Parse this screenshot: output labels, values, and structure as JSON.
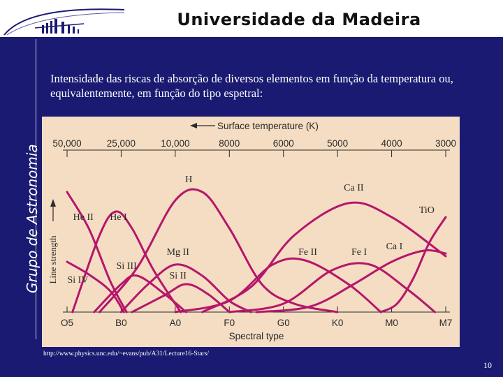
{
  "header": {
    "title": "Universidade da Madeira",
    "side_label": "Grupo de Astronomia"
  },
  "intro_text": "Intensidade das riscas de absorção de diversos elementos em função da temperatura ou, equivalentemente, em função do tipo espetral:",
  "source_url": "http://www.physics.unc.edu/~evans/pub/A31/Lecture16-Stars/",
  "page_number": "10",
  "colors": {
    "background": "#1a1a72",
    "chart_bg": "#f4ddc2",
    "curve": "#b5166b",
    "text_dark": "#2a2a2a"
  },
  "chart_data": {
    "type": "line",
    "title": "",
    "top_axis_label": "Surface temperature (K)",
    "top_ticks": [
      "50,000",
      "25,000",
      "10,000",
      "8000",
      "6000",
      "5000",
      "4000",
      "3000"
    ],
    "xlabel": "Spectral type",
    "x_ticks": [
      "O5",
      "B0",
      "A0",
      "F0",
      "G0",
      "K0",
      "M0",
      "M7"
    ],
    "ylabel": "Line strength",
    "xlim": [
      0,
      7
    ],
    "ylim": [
      0,
      1
    ],
    "series": [
      {
        "name": "He II",
        "x": [
          0,
          0.4,
          0.8,
          1.1
        ],
        "values": [
          0.86,
          0.6,
          0.22,
          0.0
        ]
      },
      {
        "name": "He I",
        "x": [
          0.1,
          0.6,
          0.9,
          1.2,
          1.6,
          2.1
        ],
        "values": [
          0.0,
          0.55,
          0.72,
          0.6,
          0.3,
          0.0
        ]
      },
      {
        "name": "Si IV",
        "x": [
          0,
          0.4,
          0.8,
          1.05
        ],
        "values": [
          0.36,
          0.27,
          0.15,
          0.0
        ]
      },
      {
        "name": "Si III",
        "x": [
          0.5,
          1.0,
          1.3,
          1.8,
          2.2
        ],
        "values": [
          0.0,
          0.2,
          0.26,
          0.13,
          0.0
        ]
      },
      {
        "name": "Si II",
        "x": [
          1.2,
          1.8,
          2.2,
          2.6,
          3.0
        ],
        "values": [
          0.0,
          0.12,
          0.2,
          0.13,
          0.0
        ]
      },
      {
        "name": "Mg II",
        "x": [
          1.0,
          1.5,
          2.0,
          2.5,
          3.0,
          3.4
        ],
        "values": [
          0.0,
          0.2,
          0.34,
          0.26,
          0.08,
          0.0
        ]
      },
      {
        "name": "H",
        "x": [
          0.6,
          1.3,
          2.0,
          2.5,
          3.0,
          3.6,
          4.2,
          5.0
        ],
        "values": [
          0.0,
          0.32,
          0.8,
          0.86,
          0.6,
          0.2,
          0.06,
          0.0
        ]
      },
      {
        "name": "Ca II",
        "x": [
          2.5,
          3.4,
          4.2,
          5.2,
          6.0,
          7.0
        ],
        "values": [
          0.0,
          0.18,
          0.55,
          0.78,
          0.68,
          0.4
        ]
      },
      {
        "name": "Fe II",
        "x": [
          2.0,
          3.0,
          3.8,
          4.4,
          5.2,
          5.8
        ],
        "values": [
          0.0,
          0.08,
          0.34,
          0.37,
          0.2,
          0.0
        ]
      },
      {
        "name": "Fe I",
        "x": [
          3.0,
          4.0,
          4.9,
          5.6,
          6.3,
          6.8
        ],
        "values": [
          0.0,
          0.06,
          0.3,
          0.34,
          0.16,
          0.0
        ]
      },
      {
        "name": "Ca I",
        "x": [
          3.5,
          4.5,
          5.3,
          6.0,
          6.6,
          7.0
        ],
        "values": [
          0.0,
          0.04,
          0.2,
          0.36,
          0.44,
          0.42
        ]
      },
      {
        "name": "TiO",
        "x": [
          5.8,
          6.1,
          6.4,
          6.7,
          7.0
        ],
        "values": [
          0.0,
          0.06,
          0.24,
          0.5,
          0.68
        ]
      }
    ],
    "curve_labels": [
      {
        "name": "H",
        "x": 2.25,
        "y": 0.93
      },
      {
        "name": "Ca II",
        "x": 5.3,
        "y": 0.87
      },
      {
        "name": "TiO",
        "x": 6.65,
        "y": 0.71
      },
      {
        "name": "He II",
        "x": 0.3,
        "y": 0.66
      },
      {
        "name": "He I",
        "x": 0.95,
        "y": 0.66
      },
      {
        "name": "Ca I",
        "x": 6.05,
        "y": 0.45
      },
      {
        "name": "Mg II",
        "x": 2.05,
        "y": 0.41
      },
      {
        "name": "Fe II",
        "x": 4.45,
        "y": 0.41
      },
      {
        "name": "Fe I",
        "x": 5.4,
        "y": 0.41
      },
      {
        "name": "Si III",
        "x": 1.1,
        "y": 0.31
      },
      {
        "name": "Si II",
        "x": 2.05,
        "y": 0.24
      },
      {
        "name": "Si IV",
        "x": 0.2,
        "y": 0.21
      }
    ]
  }
}
